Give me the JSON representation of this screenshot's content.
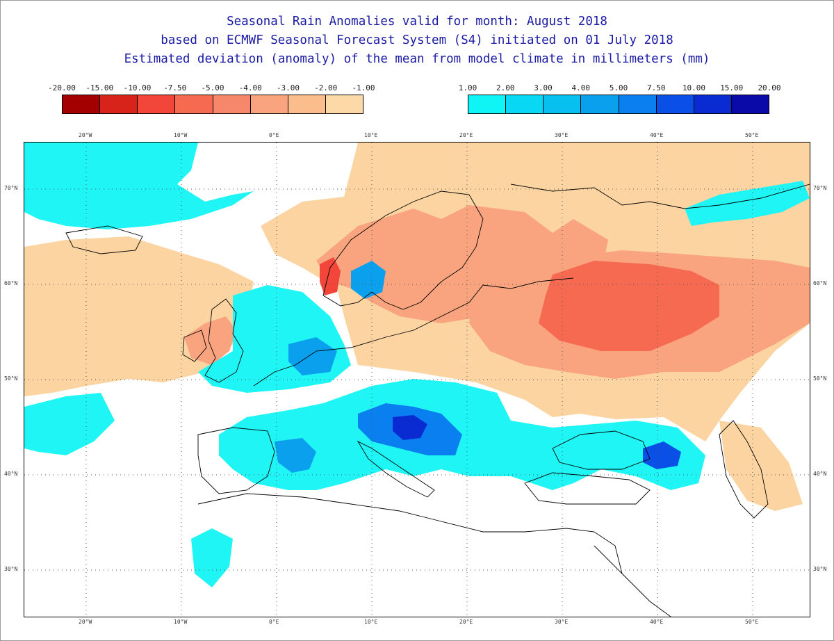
{
  "title": {
    "line1": "Seasonal Rain Anomalies valid for month: August 2018",
    "line2": "based on ECMWF Seasonal Forecast System (S4) initiated on 01 July 2018",
    "line3": "Estimated deviation (anomaly) of the mean from model climate in millimeters (mm)"
  },
  "legend_negative": {
    "labels": [
      "-20.00",
      "-15.00",
      "-10.00",
      "-7.50",
      "-5.00",
      "-4.00",
      "-3.00",
      "-2.00",
      "-1.00"
    ],
    "colors": [
      "#a50000",
      "#d8231a",
      "#f2463a",
      "#f66a52",
      "#f7876a",
      "#f9a47f",
      "#fbbd8c",
      "#fcd9a6"
    ]
  },
  "legend_positive": {
    "labels": [
      "1.00",
      "2.00",
      "3.00",
      "4.00",
      "5.00",
      "7.50",
      "10.00",
      "15.00",
      "20.00"
    ],
    "colors": [
      "#0ff5f5",
      "#09d8f4",
      "#08c0f0",
      "#0aa0ee",
      "#0a7ff0",
      "#0a4fe6",
      "#0a2ad2",
      "#0a0aa8"
    ]
  },
  "longitudes": [
    "20°W",
    "10°W",
    "0°E",
    "10°E",
    "20°E",
    "30°E",
    "40°E",
    "50°E"
  ],
  "latitudes": [
    "70°N",
    "60°N",
    "50°N",
    "40°N",
    "30°N"
  ]
}
